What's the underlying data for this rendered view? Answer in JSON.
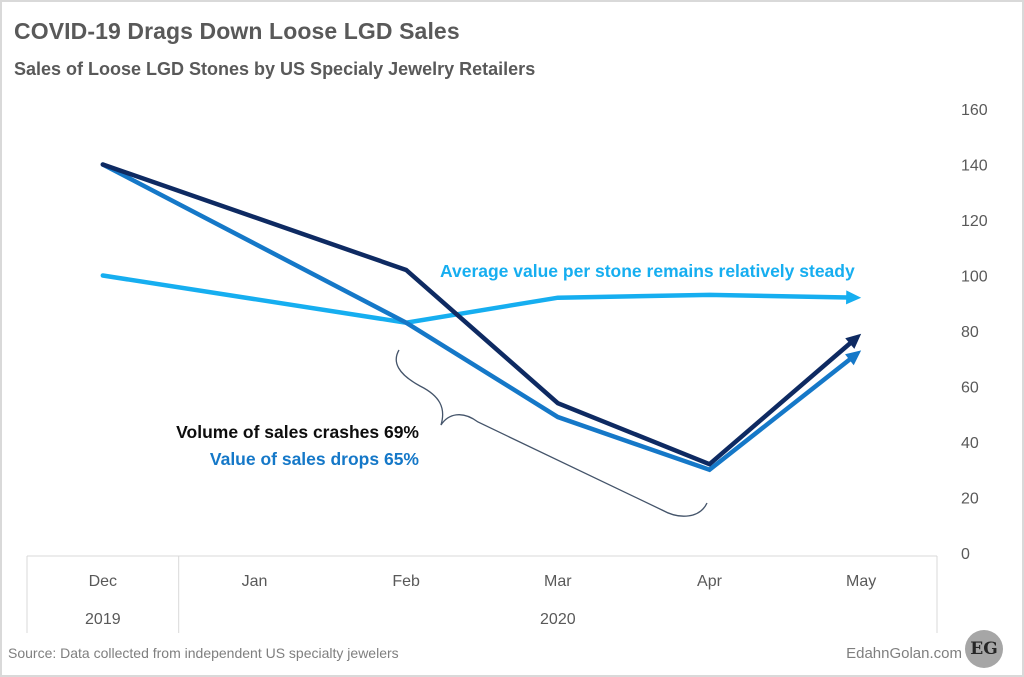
{
  "header": {
    "title": "COVID-19 Drags Down Loose LGD Sales",
    "subtitle": "Sales of Loose LGD Stones by US Specialy Jewelry Retailers"
  },
  "footer": {
    "source": "Source: Data collected from independent US specialty jewelers",
    "brand": "EdahnGolan.com",
    "logo_text": "EG"
  },
  "colors": {
    "volume": "#0e2a62",
    "value": "#1578c8",
    "average": "#16aef0",
    "bracket": "#44546a",
    "axis_text": "#595959",
    "grid_border": "#d9d9d9"
  },
  "chart_data": {
    "type": "line",
    "title": "COVID-19 Drags Down Loose LGD Sales",
    "subtitle": "Sales of Loose LGD Stones by US Specialy Jewelry Retailers",
    "categories": [
      "Dec",
      "Jan",
      "Feb",
      "Mar",
      "Apr",
      "May"
    ],
    "category_groups": [
      {
        "label": "2019",
        "span": [
          "Dec"
        ]
      },
      {
        "label": "2020",
        "span": [
          "Jan",
          "Feb",
          "Mar",
          "Apr",
          "May"
        ]
      }
    ],
    "yaxis_position": "right",
    "ylim": [
      0,
      160
    ],
    "yticks": [
      0,
      20,
      40,
      60,
      80,
      100,
      120,
      140,
      160
    ],
    "grid": false,
    "series": [
      {
        "name": "Volume of sales",
        "key": "volume",
        "x": [
          "Dec",
          "Feb",
          "Mar",
          "Apr",
          "May"
        ],
        "values": [
          140,
          102,
          54,
          32,
          79
        ],
        "end_arrow": true
      },
      {
        "name": "Value of sales",
        "key": "value",
        "x": [
          "Dec",
          "Feb",
          "Mar",
          "Apr",
          "May"
        ],
        "values": [
          140,
          83,
          49,
          30,
          73
        ],
        "end_arrow": true
      },
      {
        "name": "Average value per stone",
        "key": "average",
        "x": [
          "Dec",
          "Feb",
          "Mar",
          "Apr",
          "May"
        ],
        "values": [
          100,
          83,
          92,
          93,
          92
        ],
        "end_arrow": true
      }
    ],
    "annotations": [
      {
        "text": "Average value per stone remains relatively steady",
        "series": "average"
      },
      {
        "text": "Volume of sales crashes 69%",
        "series": "volume"
      },
      {
        "text": "Value of sales drops 65%",
        "series": "value"
      }
    ]
  }
}
